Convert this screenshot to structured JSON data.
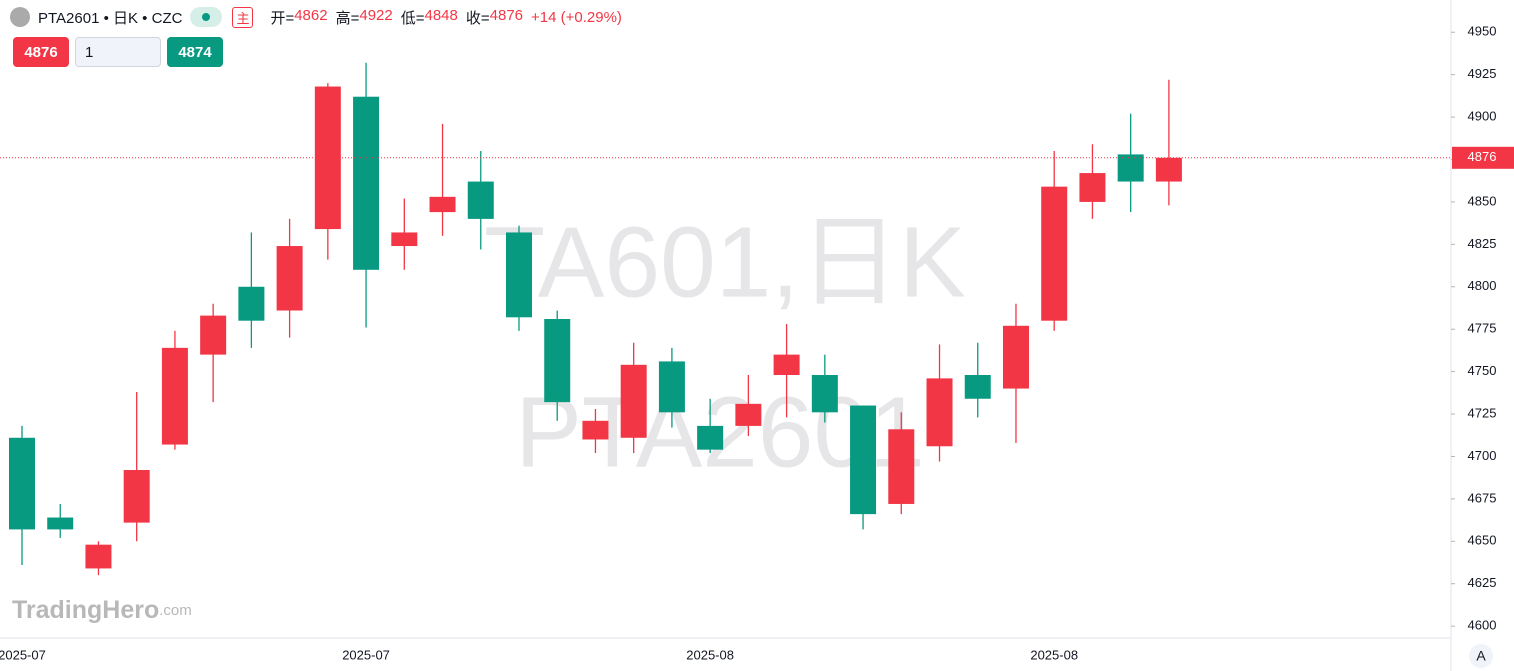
{
  "chart_data": {
    "type": "candlestick",
    "title": "PTA2601 • 日K • CZC",
    "main_tag": "主",
    "ohlc_header": [
      {
        "label": "开=",
        "value": 4862
      },
      {
        "label": "高=",
        "value": 4922
      },
      {
        "label": "低=",
        "value": 4848
      },
      {
        "label": "收=",
        "value": 4876
      }
    ],
    "change": "+14 (+0.29%)",
    "bid": 4876,
    "quantity": "1",
    "ask": 4874,
    "watermark": [
      "TA601,日K",
      "PTA2601"
    ],
    "logo": [
      "TradingHero",
      ".com"
    ],
    "scale_button": "A",
    "last_price": 4876,
    "up_color": "#f23645",
    "down_color": "#089981",
    "categories": [
      "2025-07",
      null,
      null,
      null,
      null,
      null,
      null,
      null,
      null,
      "2025-07",
      null,
      null,
      null,
      null,
      null,
      null,
      null,
      null,
      "2025-08",
      null,
      null,
      null,
      null,
      null,
      null,
      null,
      null,
      "2025-08",
      null,
      null,
      null
    ],
    "open": [
      4711,
      4664,
      4634,
      4661,
      4707,
      4760,
      4800,
      4786,
      4834,
      4912,
      4824,
      4844,
      4862,
      4832,
      4781,
      4710,
      4711,
      4756,
      4718,
      4718,
      4748,
      4748,
      4730,
      4672,
      4706,
      4748,
      4740,
      4780,
      4850,
      4878,
      4862
    ],
    "high": [
      4718,
      4672,
      4650,
      4738,
      4774,
      4790,
      4832,
      4840,
      4920,
      4932,
      4852,
      4896,
      4880,
      4836,
      4786,
      4728,
      4767,
      4764,
      4734,
      4748,
      4778,
      4760,
      4730,
      4726,
      4766,
      4767,
      4790,
      4880,
      4884,
      4902,
      4922
    ],
    "low": [
      4636,
      4652,
      4630,
      4650,
      4704,
      4732,
      4764,
      4770,
      4816,
      4776,
      4810,
      4830,
      4822,
      4774,
      4721,
      4702,
      4702,
      4717,
      4702,
      4712,
      4723,
      4720,
      4657,
      4666,
      4697,
      4723,
      4708,
      4774,
      4840,
      4844,
      4848
    ],
    "close": [
      4657,
      4657,
      4648,
      4692,
      4764,
      4783,
      4780,
      4824,
      4918,
      4810,
      4832,
      4853,
      4840,
      4782,
      4732,
      4721,
      4754,
      4726,
      4704,
      4731,
      4760,
      4726,
      4666,
      4716,
      4746,
      4734,
      4777,
      4859,
      4867,
      4862,
      4876
    ],
    "ylim": [
      4593,
      4969
    ],
    "yticks": [
      4600,
      4625,
      4650,
      4675,
      4700,
      4725,
      4750,
      4775,
      4800,
      4825,
      4850,
      4875,
      4900,
      4925,
      4950
    ]
  }
}
